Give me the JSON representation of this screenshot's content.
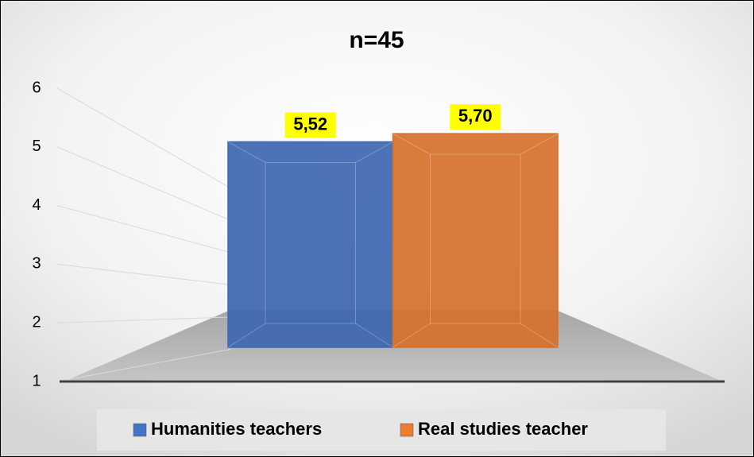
{
  "chart_data": {
    "type": "bar",
    "title": "n=45",
    "categories": [
      null
    ],
    "series": [
      {
        "name": "Humanities teachers",
        "color": "#4472c4",
        "values": [
          5.52
        ],
        "value_labels": [
          "5,52"
        ]
      },
      {
        "name": "Real studies teacher",
        "color": "#ed7d31",
        "values": [
          5.7
        ],
        "value_labels": [
          "5,70"
        ]
      }
    ],
    "ylim": [
      1,
      6
    ],
    "yticks": [
      1,
      2,
      3,
      4,
      5,
      6
    ],
    "grid": true,
    "legend": "bottom"
  }
}
